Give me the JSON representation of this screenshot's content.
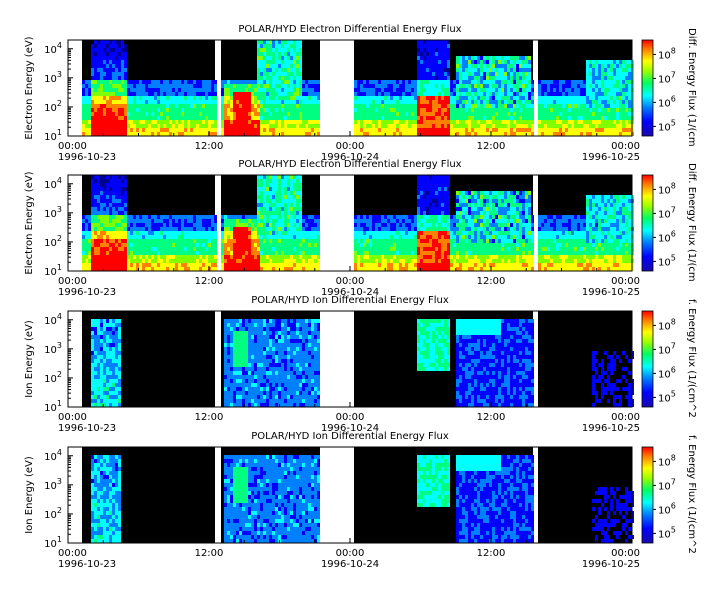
{
  "chart_data": [
    {
      "type": "heatmap",
      "title": "POLAR/HYD  Electron Differential Energy Flux",
      "ylabel": "Electron Energy (eV)",
      "colorbar_label": "Diff. Energy Flux (1/(cm",
      "yscale": "log",
      "ylim": [
        10,
        20000
      ],
      "y_ticks": [
        {
          "base": "10",
          "exp": "1"
        },
        {
          "base": "10",
          "exp": "2"
        },
        {
          "base": "10",
          "exp": "3"
        },
        {
          "base": "10",
          "exp": "4"
        }
      ],
      "colorbar_scale": "log",
      "colorbar_ticks": [
        {
          "base": "10",
          "exp": "5"
        },
        {
          "base": "10",
          "exp": "6"
        },
        {
          "base": "10",
          "exp": "7"
        },
        {
          "base": "10",
          "exp": "8"
        }
      ],
      "x_ticks": [
        {
          "time": "00:00",
          "date": "1996-10-23"
        },
        {
          "time": "12:00",
          "date": ""
        },
        {
          "time": "00:00",
          "date": "1996-10-24"
        },
        {
          "time": "12:00",
          "date": ""
        },
        {
          "time": "00:00",
          "date": "1996-10-25"
        }
      ]
    },
    {
      "type": "heatmap",
      "title": "POLAR/HYD  Electron Differential Energy Flux",
      "ylabel": "Electron Energy (eV)",
      "colorbar_label": "Diff. Energy Flux (1/(cm",
      "yscale": "log",
      "ylim": [
        10,
        20000
      ],
      "y_ticks": [
        {
          "base": "10",
          "exp": "1"
        },
        {
          "base": "10",
          "exp": "2"
        },
        {
          "base": "10",
          "exp": "3"
        },
        {
          "base": "10",
          "exp": "4"
        }
      ],
      "colorbar_scale": "log",
      "colorbar_ticks": [
        {
          "base": "10",
          "exp": "5"
        },
        {
          "base": "10",
          "exp": "6"
        },
        {
          "base": "10",
          "exp": "7"
        },
        {
          "base": "10",
          "exp": "8"
        }
      ],
      "x_ticks": [
        {
          "time": "00:00",
          "date": "1996-10-23"
        },
        {
          "time": "12:00",
          "date": ""
        },
        {
          "time": "00:00",
          "date": "1996-10-24"
        },
        {
          "time": "12:00",
          "date": ""
        },
        {
          "time": "00:00",
          "date": "1996-10-25"
        }
      ]
    },
    {
      "type": "heatmap",
      "title": "POLAR/HYD  Ion Differential Energy Flux",
      "ylabel": "Ion Energy (eV)",
      "colorbar_label": "f. Energy Flux (1/(cm^2",
      "yscale": "log",
      "ylim": [
        10,
        20000
      ],
      "y_ticks": [
        {
          "base": "10",
          "exp": "1"
        },
        {
          "base": "10",
          "exp": "2"
        },
        {
          "base": "10",
          "exp": "3"
        },
        {
          "base": "10",
          "exp": "4"
        }
      ],
      "colorbar_scale": "log",
      "colorbar_ticks": [
        {
          "base": "10",
          "exp": "5"
        },
        {
          "base": "10",
          "exp": "6"
        },
        {
          "base": "10",
          "exp": "7"
        },
        {
          "base": "10",
          "exp": "8"
        }
      ],
      "x_ticks": [
        {
          "time": "00:00",
          "date": "1996-10-23"
        },
        {
          "time": "12:00",
          "date": ""
        },
        {
          "time": "00:00",
          "date": "1996-10-24"
        },
        {
          "time": "12:00",
          "date": ""
        },
        {
          "time": "00:00",
          "date": "1996-10-25"
        }
      ]
    },
    {
      "type": "heatmap",
      "title": "POLAR/HYD  Ion Differential Energy Flux",
      "ylabel": "Ion Energy (eV)",
      "colorbar_label": "f. Energy Flux (1/(cm^2",
      "yscale": "log",
      "ylim": [
        10,
        20000
      ],
      "y_ticks": [
        {
          "base": "10",
          "exp": "1"
        },
        {
          "base": "10",
          "exp": "2"
        },
        {
          "base": "10",
          "exp": "3"
        },
        {
          "base": "10",
          "exp": "4"
        }
      ],
      "colorbar_scale": "log",
      "colorbar_ticks": [
        {
          "base": "10",
          "exp": "5"
        },
        {
          "base": "10",
          "exp": "6"
        },
        {
          "base": "10",
          "exp": "7"
        },
        {
          "base": "10",
          "exp": "8"
        }
      ],
      "x_ticks": [
        {
          "time": "00:00",
          "date": "1996-10-23"
        },
        {
          "time": "12:00",
          "date": ""
        },
        {
          "time": "00:00",
          "date": "1996-10-24"
        },
        {
          "time": "12:00",
          "date": ""
        },
        {
          "time": "00:00",
          "date": "1996-10-25"
        }
      ]
    }
  ],
  "colormap": [
    "#000090",
    "#0000ff",
    "#0080ff",
    "#00ffff",
    "#00ff80",
    "#80ff00",
    "#ffff00",
    "#ff8000",
    "#ff0000"
  ]
}
